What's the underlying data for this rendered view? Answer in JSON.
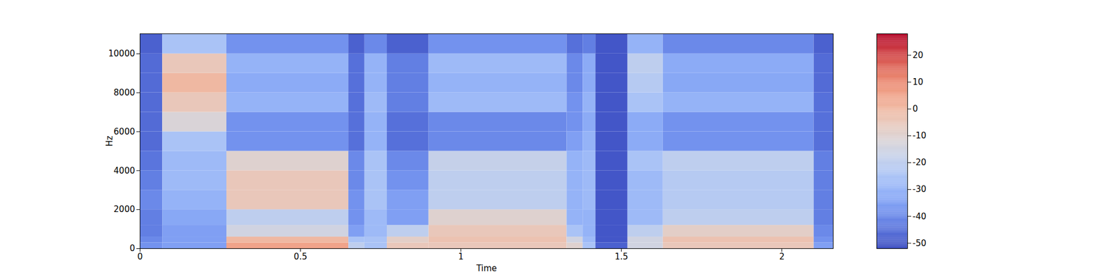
{
  "chart_data": {
    "type": "heatmap",
    "x_label": "Time",
    "y_label": "Hz",
    "color": "coolwarm",
    "xlim": [
      0,
      2.16
    ],
    "ylim": [
      0,
      11025
    ],
    "xticks": [
      0,
      0.5,
      1,
      1.5,
      2
    ],
    "yticks": [
      0,
      2000,
      4000,
      6000,
      8000,
      10000
    ],
    "x_edges": [
      0,
      0.07,
      0.27,
      0.65,
      0.7,
      0.77,
      0.9,
      1.33,
      1.38,
      1.42,
      1.52,
      1.63,
      2.1,
      2.16
    ],
    "y_edges": [
      0,
      300,
      600,
      1200,
      2000,
      3000,
      4000,
      5000,
      6000,
      7000,
      8000,
      9000,
      10000,
      11025
    ],
    "values": [
      [
        -38,
        -35,
        5,
        -20,
        -25,
        -5,
        -5,
        -10,
        -25,
        -48,
        -15,
        -5,
        -35
      ],
      [
        -40,
        -35,
        0,
        -25,
        -25,
        -8,
        -3,
        -15,
        -28,
        -50,
        -15,
        -3,
        -38
      ],
      [
        -42,
        -35,
        -15,
        -35,
        -28,
        -20,
        -5,
        -25,
        -30,
        -50,
        -20,
        -8,
        -40
      ],
      [
        -42,
        -33,
        -20,
        -38,
        -28,
        -35,
        -10,
        -30,
        -30,
        -50,
        -28,
        -20,
        -42
      ],
      [
        -40,
        -30,
        -5,
        -38,
        -25,
        -35,
        -20,
        -30,
        -28,
        -50,
        -28,
        -22,
        -42
      ],
      [
        -42,
        -28,
        -5,
        -40,
        -25,
        -38,
        -20,
        -30,
        -28,
        -50,
        -28,
        -22,
        -42
      ],
      [
        -44,
        -28,
        -10,
        -40,
        -25,
        -40,
        -18,
        -30,
        -28,
        -50,
        -25,
        -20,
        -42
      ],
      [
        -46,
        -25,
        -38,
        -45,
        -30,
        -45,
        -40,
        -35,
        -30,
        -50,
        -32,
        -38,
        -45
      ],
      [
        -46,
        -12,
        -38,
        -45,
        -30,
        -45,
        -40,
        -38,
        -32,
        -50,
        -32,
        -38,
        -45
      ],
      [
        -46,
        -5,
        -30,
        -45,
        -28,
        -42,
        -28,
        -38,
        -30,
        -50,
        -25,
        -30,
        -45
      ],
      [
        -46,
        0,
        -32,
        -45,
        -30,
        -42,
        -30,
        -40,
        -32,
        -50,
        -22,
        -33,
        -46
      ],
      [
        -46,
        -5,
        -30,
        -45,
        -30,
        -42,
        -28,
        -40,
        -32,
        -50,
        -20,
        -32,
        -46
      ],
      [
        -48,
        -25,
        -38,
        -48,
        -40,
        -48,
        -38,
        -45,
        -42,
        -50,
        -30,
        -40,
        -48
      ]
    ],
    "colorbar": {
      "range": [
        -52,
        28
      ],
      "ticks": [
        -50,
        -40,
        -30,
        -20,
        -10,
        0,
        10,
        20
      ]
    }
  }
}
